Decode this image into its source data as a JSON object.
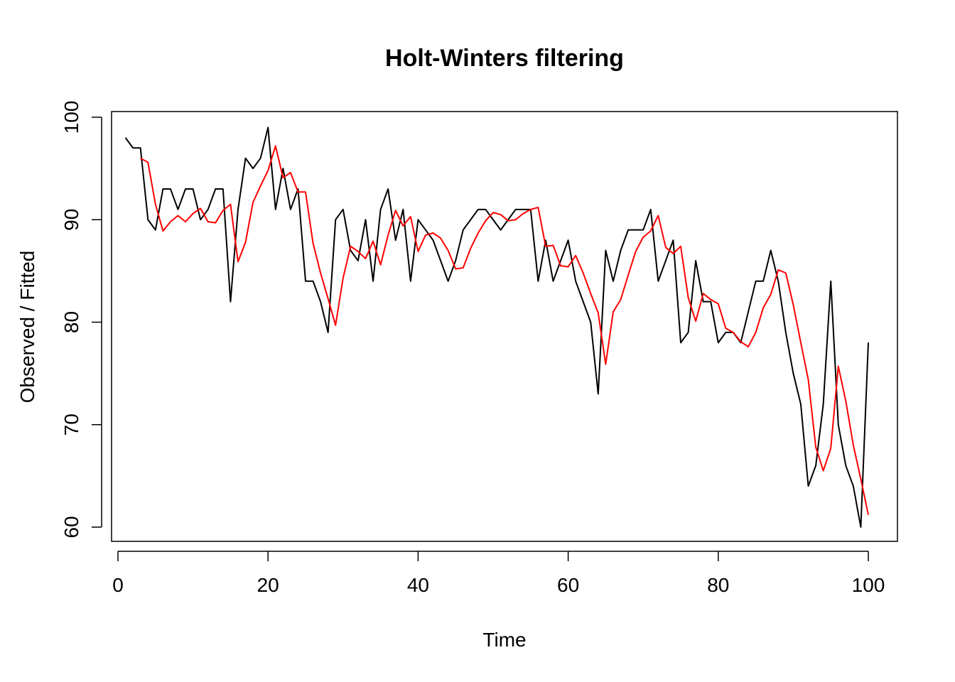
{
  "chart_data": {
    "type": "line",
    "title": "Holt-Winters filtering",
    "xlabel": "Time",
    "ylabel": "Observed / Fitted",
    "xlim": [
      0,
      100
    ],
    "ylim": [
      60,
      100
    ],
    "x_ticks": [
      0,
      20,
      40,
      60,
      80,
      100
    ],
    "y_ticks": [
      60,
      70,
      80,
      90,
      100
    ],
    "grid": false,
    "legend": "none",
    "series": [
      {
        "color": "#000000",
        "x": [
          1,
          2,
          3,
          4,
          5,
          6,
          7,
          8,
          9,
          10,
          11,
          12,
          13,
          14,
          15,
          16,
          17,
          18,
          19,
          20,
          21,
          22,
          23,
          24,
          25,
          26,
          27,
          28,
          29,
          30,
          31,
          32,
          33,
          34,
          35,
          36,
          37,
          38,
          39,
          40,
          41,
          42,
          43,
          44,
          45,
          46,
          47,
          48,
          49,
          50,
          51,
          52,
          53,
          54,
          55,
          56,
          57,
          58,
          59,
          60,
          61,
          62,
          63,
          64,
          65,
          66,
          67,
          68,
          69,
          70,
          71,
          72,
          73,
          74,
          75,
          76,
          77,
          78,
          79,
          80,
          81,
          82,
          83,
          84,
          85,
          86,
          87,
          88,
          89,
          90,
          91,
          92,
          93,
          94,
          95,
          96,
          97,
          98,
          99,
          100
        ],
        "values": [
          98,
          97,
          97,
          90,
          89,
          93,
          93,
          91,
          93,
          93,
          90,
          91,
          93,
          93,
          82,
          91,
          96,
          95,
          96,
          99,
          91,
          95,
          91,
          93,
          84,
          84,
          82,
          79,
          90,
          91,
          87,
          86,
          90,
          84,
          91,
          93,
          88,
          91,
          84,
          90,
          89,
          88,
          86,
          84,
          86,
          89,
          90,
          91,
          91,
          90,
          89,
          90,
          91,
          91,
          91,
          84,
          88,
          84,
          86,
          88,
          84,
          82,
          80,
          73,
          87,
          84,
          87,
          89,
          89,
          89,
          91,
          84,
          86,
          88,
          78,
          79,
          86,
          82,
          82,
          78,
          79,
          79,
          78,
          81,
          84,
          84,
          87,
          84,
          79,
          75,
          72,
          64,
          66,
          72,
          84,
          70,
          66,
          64,
          60,
          78
        ]
      },
      {
        "color": "#ff0000",
        "x": [
          3,
          4,
          5,
          6,
          7,
          8,
          9,
          10,
          11,
          12,
          13,
          14,
          15,
          16,
          17,
          18,
          19,
          20,
          21,
          22,
          23,
          24,
          25,
          26,
          27,
          28,
          29,
          30,
          31,
          32,
          33,
          34,
          35,
          36,
          37,
          38,
          39,
          40,
          41,
          42,
          43,
          44,
          45,
          46,
          47,
          48,
          49,
          50,
          51,
          52,
          53,
          54,
          55,
          56,
          57,
          58,
          59,
          60,
          61,
          62,
          63,
          64,
          65,
          66,
          67,
          68,
          69,
          70,
          71,
          72,
          73,
          74,
          75,
          76,
          77,
          78,
          79,
          80,
          81,
          82,
          83,
          84,
          85,
          86,
          87,
          88,
          89,
          90,
          91,
          92,
          93,
          94,
          95,
          96,
          97,
          98,
          99,
          100
        ],
        "values": [
          96,
          95.6,
          91.5,
          88.9,
          89.8,
          90.4,
          89.8,
          90.6,
          91.1,
          89.8,
          89.7,
          90.9,
          91.5,
          85.9,
          87.8,
          91.7,
          93.3,
          94.8,
          97.2,
          94.1,
          94.6,
          92.7,
          92.7,
          87.7,
          84.8,
          82.3,
          79.7,
          84.3,
          87.4,
          86.9,
          86.2,
          87.9,
          85.6,
          88.5,
          90.9,
          89.4,
          90.3,
          86.9,
          88.5,
          88.7,
          88.2,
          87,
          85.2,
          85.3,
          87.2,
          88.7,
          89.9,
          90.7,
          90.5,
          89.9,
          90,
          90.6,
          91,
          91.2,
          87.4,
          87.5,
          85.5,
          85.4,
          86.5,
          84.8,
          82.8,
          80.9,
          75.9,
          81,
          82.2,
          84.6,
          86.9,
          88.3,
          88.9,
          90.4,
          87.3,
          86.7,
          87.4,
          82.4,
          80.1,
          82.8,
          82.2,
          81.8,
          79.4,
          79,
          78.1,
          77.6,
          79,
          81.4,
          82.7,
          85.1,
          84.8,
          81.7,
          78,
          74.4,
          67.8,
          65.5,
          67.7,
          75.7,
          72.3,
          68,
          64.7,
          61.2
        ]
      }
    ]
  }
}
